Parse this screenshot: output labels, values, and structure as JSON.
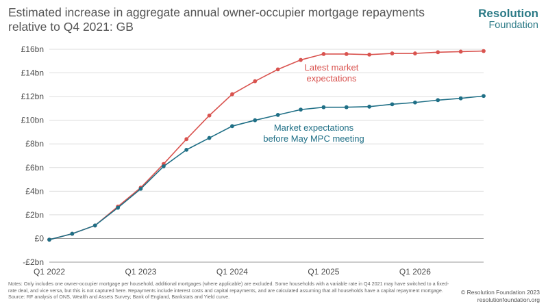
{
  "header": {
    "title": "Estimated increase in aggregate annual owner-occupier mortgage repayments relative to Q4 2021: GB",
    "brand_name": "Resolution",
    "brand_sub": "Foundation"
  },
  "chart_data": {
    "type": "line",
    "title": "Estimated increase in aggregate annual owner-occupier mortgage repayments relative to Q4 2021: GB",
    "xlabel": "",
    "ylabel": "",
    "x": [
      "Q1 2022",
      "Q2 2022",
      "Q3 2022",
      "Q4 2022",
      "Q1 2023",
      "Q2 2023",
      "Q3 2023",
      "Q4 2023",
      "Q1 2024",
      "Q2 2024",
      "Q3 2024",
      "Q4 2024",
      "Q1 2025",
      "Q2 2025",
      "Q3 2025",
      "Q4 2025",
      "Q1 2026",
      "Q2 2026",
      "Q3 2026",
      "Q4 2026"
    ],
    "x_tick_labels": [
      "Q1 2022",
      "Q1 2023",
      "Q1 2024",
      "Q1 2025",
      "Q1 2026"
    ],
    "y_tick_labels": [
      "-£2bn",
      "£0",
      "£2bn",
      "£4bn",
      "£6bn",
      "£8bn",
      "£10bn",
      "£12bn",
      "£14bn",
      "£16bn"
    ],
    "y_ticks": [
      -2,
      0,
      2,
      4,
      6,
      8,
      10,
      12,
      14,
      16
    ],
    "ylim": [
      -2,
      16
    ],
    "grid": true,
    "series": [
      {
        "name": "Latest market expectations",
        "color": "#d9534f",
        "label_lines": [
          "Latest market",
          "expectations"
        ],
        "values": [
          -0.1,
          0.4,
          1.1,
          2.7,
          4.3,
          6.3,
          8.4,
          10.4,
          12.2,
          13.3,
          14.3,
          15.1,
          15.6,
          15.6,
          15.55,
          15.65,
          15.65,
          15.75,
          15.8,
          15.85
        ]
      },
      {
        "name": "Market expectations before May MPC meeting",
        "color": "#1f6f86",
        "label_lines": [
          "Market expectations",
          "before May MPC meeting"
        ],
        "values": [
          -0.1,
          0.4,
          1.1,
          2.6,
          4.2,
          6.1,
          7.5,
          8.5,
          9.5,
          10.0,
          10.45,
          10.9,
          11.1,
          11.1,
          11.15,
          11.35,
          11.5,
          11.7,
          11.85,
          12.05
        ]
      }
    ]
  },
  "footer": {
    "notes": "Notes: Only includes one owner-occupier mortgage per household, additional mortgages (where applicable) are excluded. Some households with a variable rate in Q4 2021 may have switched to a fixed-rate deal, and vice versa, but this is not captured here. Repayments include interest costs and capital repayments, and are calculated assuming that all households have a capital repayment mortgage. Source: RF analysis of ONS, Wealth and Assets Survey; Bank of England, Bankstats and Yield curve.",
    "copyright": "© Resolution Foundation 2023",
    "website": "resolutionfoundation.org"
  }
}
